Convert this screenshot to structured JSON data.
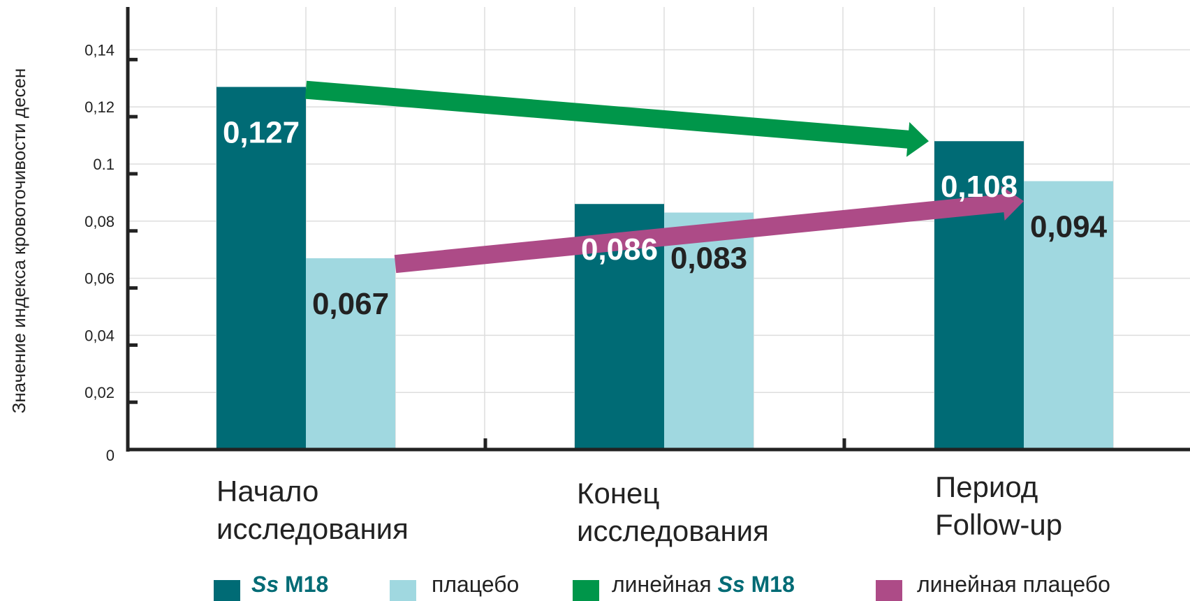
{
  "chart_data": {
    "type": "bar",
    "ylabel": "Значение индекса кровоточивости десен",
    "ylim": [
      0,
      0.155
    ],
    "y_ticks": [
      {
        "value": 0,
        "label": "0"
      },
      {
        "value": 0.02,
        "label": "0,02"
      },
      {
        "value": 0.04,
        "label": "0,04"
      },
      {
        "value": 0.06,
        "label": "0,06"
      },
      {
        "value": 0.08,
        "label": "0,08"
      },
      {
        "value": 0.1,
        "label": "0.1"
      },
      {
        "value": 0.12,
        "label": "0,12"
      },
      {
        "value": 0.14,
        "label": "0,14"
      }
    ],
    "categories": [
      {
        "line1": "Начало",
        "line2": "исследования"
      },
      {
        "line1": "Конец",
        "line2": "исследования"
      },
      {
        "line1": "Период",
        "line2": "Follow-up"
      }
    ],
    "grid": true,
    "legend_position": "bottom",
    "series": [
      {
        "name_em": "Ss",
        "name_rest": " M18",
        "color": "#006b75",
        "label_color": "#ffffff",
        "values": [
          0.127,
          0.086,
          0.108
        ],
        "labels": [
          "0,127",
          "0,086",
          "0,108"
        ]
      },
      {
        "name": "плацебо",
        "color": "#a0d8e0",
        "label_color": "#222222",
        "values": [
          0.067,
          0.083,
          0.094
        ],
        "labels": [
          "0,067",
          "0,083",
          "0,094"
        ]
      }
    ],
    "trend_lines": [
      {
        "name_prefix": "линейная ",
        "name_em": "Ss",
        "name_rest": " M18",
        "color": "#00964a",
        "from": {
          "category": 0,
          "value": 0.126
        },
        "to": {
          "category": 2,
          "value": 0.108
        }
      },
      {
        "name": "линейная плацебо",
        "color": "#ad4b87",
        "from": {
          "category": 0,
          "value": 0.065
        },
        "to": {
          "category": 2,
          "value": 0.087
        }
      }
    ]
  }
}
